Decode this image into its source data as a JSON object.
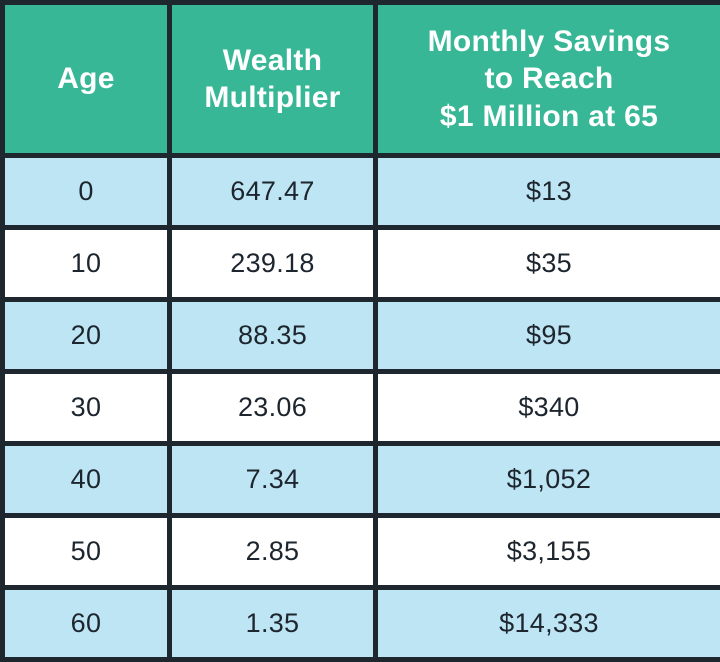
{
  "colors": {
    "header_bg": "#37b796",
    "header_text": "#ffffff",
    "row_bg": "#ffffff",
    "row_alt_bg": "#bee5f3",
    "border": "#1e262e",
    "body_text": "#1d252e"
  },
  "table": {
    "headers": [
      "Age",
      "Wealth\nMultiplier",
      "Monthly Savings\nto Reach\n$1 Million at 65"
    ]
  },
  "chart_data": {
    "type": "table",
    "title": "",
    "columns": [
      "Age",
      "Wealth Multiplier",
      "Monthly Savings to Reach $1 Million at 65"
    ],
    "rows": [
      [
        "0",
        "647.47",
        "$13"
      ],
      [
        "10",
        "239.18",
        "$35"
      ],
      [
        "20",
        "88.35",
        "$95"
      ],
      [
        "30",
        "23.06",
        "$340"
      ],
      [
        "40",
        "7.34",
        "$1,052"
      ],
      [
        "50",
        "2.85",
        "$3,155"
      ],
      [
        "60",
        "1.35",
        "$14,333"
      ]
    ],
    "layout_hints": {
      "header_lines": {
        "column_2": [
          "Wealth",
          "Multiplier"
        ],
        "column_3": [
          "Monthly Savings",
          "to Reach",
          "$1 Million at 65"
        ]
      },
      "alternating_row_shading": "rows with ages 0,20,40,60 are light blue; 10,30,50 are white",
      "grid": "thick dark borders on all cells"
    }
  }
}
